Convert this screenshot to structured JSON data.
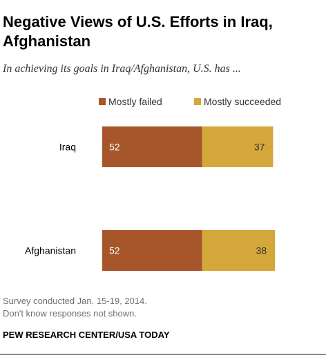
{
  "title": "Negative Views of U.S. Efforts in Iraq, Afghanistan",
  "subtitle": "In achieving its goals in Iraq/Afghanistan, U.S. has ...",
  "note_lines": [
    "Survey conducted Jan. 15-19, 2014.",
    "Don't know responses not shown."
  ],
  "source": "PEW RESEARCH CENTER/USA TODAY",
  "chart_data": {
    "type": "bar",
    "orientation": "horizontal",
    "stacked": true,
    "categories": [
      "Iraq",
      "Afghanistan"
    ],
    "series": [
      {
        "name": "Mostly failed",
        "values": [
          52,
          52
        ],
        "color": "#a6562a"
      },
      {
        "name": "Mostly succeeded",
        "values": [
          37,
          38
        ],
        "color": "#d4a73a"
      }
    ],
    "xlim": [
      0,
      100
    ],
    "legend_position": "top",
    "grid": false
  }
}
